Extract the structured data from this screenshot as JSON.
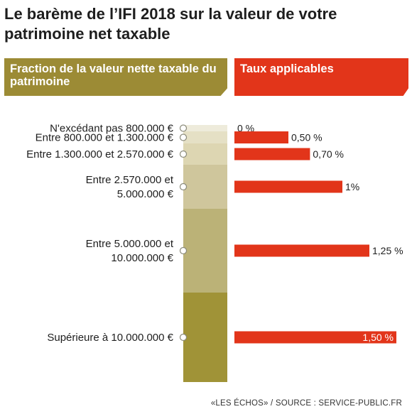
{
  "title": "Le barème de l’IFI 2018 sur la valeur de votre patrimoine net taxable",
  "headers": {
    "left": "Fraction de la valeur nette taxable du patrimoine",
    "right": "Taux applicables"
  },
  "footer": "«LES ÉCHOS» / SOURCE : SERVICE-PUBLIC.FR",
  "colors": {
    "header_left": "#9c8b35",
    "header_right": "#e2351a",
    "bar": "#e2351a",
    "segments": [
      "#eeebdb",
      "#e5e0c5",
      "#ddd6b2",
      "#cfc69c",
      "#bbb277",
      "#a09337"
    ]
  },
  "chart_data": {
    "type": "bar",
    "orientation": "horizontal",
    "categories": [
      "N'excédant pas 800.000 €",
      "Entre 800.000 et 1.300.000 €",
      "Entre 1.300.000 et 2.570.000 €",
      "Entre 2.570.000 et 5.000.000 €",
      "Entre 5.000.000 et 10.000.000 €",
      "Supérieure à 10.000.000 €"
    ],
    "category_lines": [
      [
        "N'excédant pas 800.000 €"
      ],
      [
        "Entre 800.000 et 1.300.000 €"
      ],
      [
        "Entre 1.300.000 et 2.570.000 €"
      ],
      [
        "Entre 2.570.000 et",
        "5.000.000 €"
      ],
      [
        "Entre 5.000.000 et",
        "10.000.000 €"
      ],
      [
        "Supérieure à 10.000.000 €"
      ]
    ],
    "values": [
      0,
      0.5,
      0.7,
      1,
      1.25,
      1.5
    ],
    "value_labels": [
      "0 %",
      "0,50 %",
      "0,70 %",
      "1%",
      "1,25 %",
      "1,50 %"
    ],
    "xlim": [
      0,
      1.5
    ],
    "title": "",
    "xlabel": "",
    "ylabel": ""
  }
}
